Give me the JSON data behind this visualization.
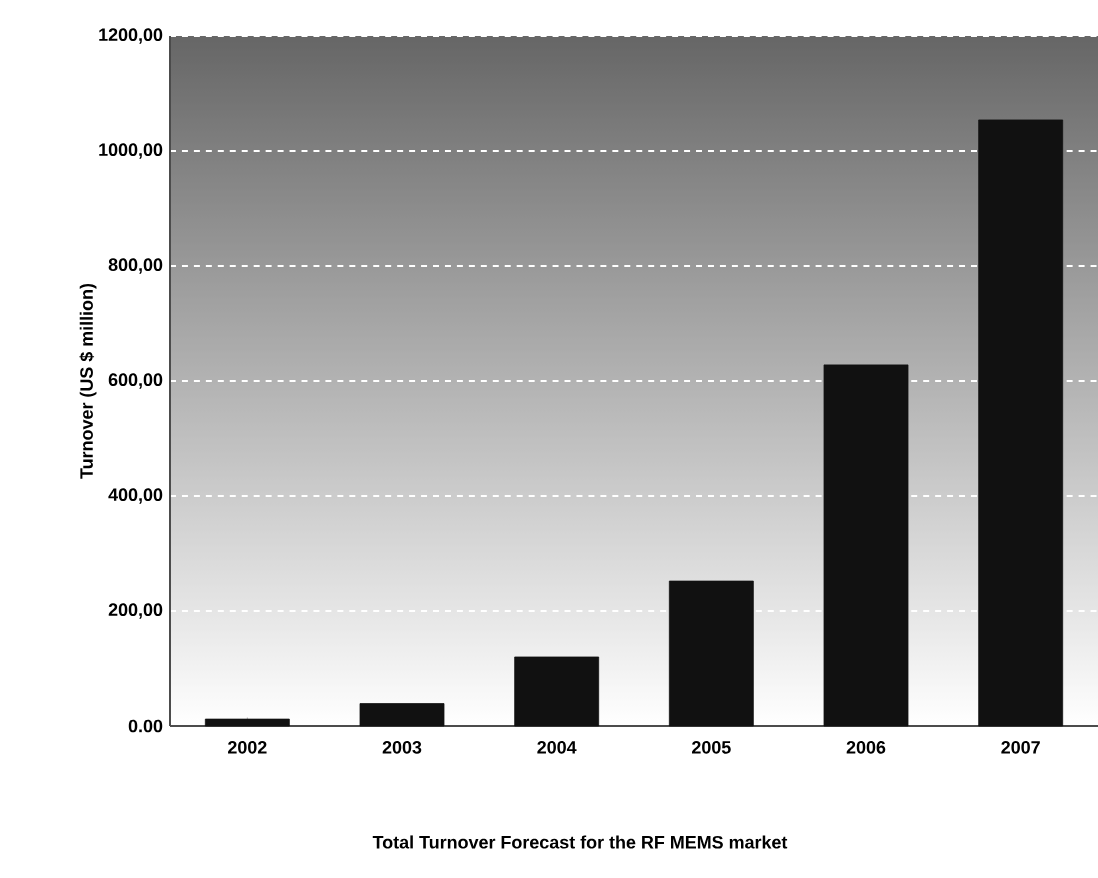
{
  "chart_data": {
    "type": "bar",
    "title": "Total Turnover Forecast for the RF MEMS market",
    "ylabel": "Turnover (US $ million)",
    "categories": [
      "2002",
      "2003",
      "2004",
      "2005",
      "2006",
      "2007"
    ],
    "values": [
      12,
      39,
      120,
      252,
      628,
      1054
    ],
    "color": "#111111",
    "ylim": [
      0,
      1200
    ],
    "yticks": [
      {
        "value": 0,
        "label": "0.00"
      },
      {
        "value": 200,
        "label": "200,00"
      },
      {
        "value": 400,
        "label": "400,00"
      },
      {
        "value": 600,
        "label": "600,00"
      },
      {
        "value": 800,
        "label": "800,00"
      },
      {
        "value": 1000,
        "label": "1000,00"
      },
      {
        "value": 1200,
        "label": "1200,00"
      }
    ],
    "grid": "y"
  }
}
